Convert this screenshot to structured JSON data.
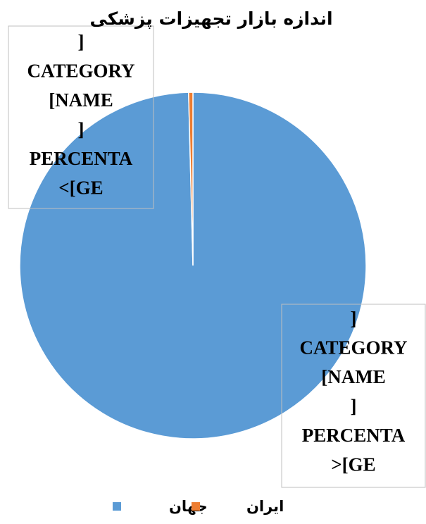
{
  "chart_data": {
    "type": "pie",
    "title": "اندازه بازار تجهیزات پزشکی",
    "categories": [
      "جهان",
      "ایران"
    ],
    "values": [
      99.6,
      0.4
    ],
    "colors": [
      "#5b9bd5",
      "#ed7d31"
    ],
    "data_labels": [
      [
        "]",
        "CATEGORY",
        "[NAME",
        "]",
        "PERCENTA",
        ">[GE"
      ],
      [
        "]",
        "CATEGORY",
        "[NAME",
        "]",
        "PERCENTA",
        "<[GE"
      ]
    ],
    "legend": "bottom"
  }
}
